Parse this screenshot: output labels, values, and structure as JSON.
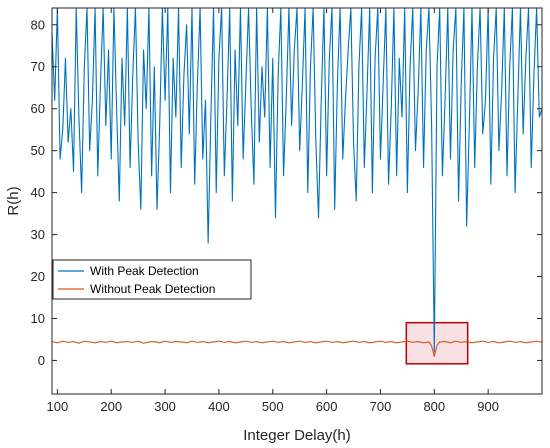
{
  "chart_data": {
    "type": "line",
    "title": "",
    "xlabel": "Integer Delay(h)",
    "ylabel": "R(h)",
    "xlim": [
      90,
      1000
    ],
    "ylim": [
      -8,
      84
    ],
    "xticks": [
      100,
      200,
      300,
      400,
      500,
      600,
      700,
      800,
      900
    ],
    "yticks": [
      0,
      10,
      20,
      30,
      40,
      50,
      60,
      70,
      80
    ],
    "grid": false,
    "legend_position": "middle-left",
    "series": [
      {
        "name": "With Peak Detection",
        "color": "#0072BD",
        "x": [
          90,
          95,
          100,
          105,
          110,
          115,
          120,
          125,
          130,
          135,
          140,
          145,
          150,
          155,
          160,
          165,
          170,
          175,
          180,
          185,
          190,
          195,
          200,
          205,
          210,
          215,
          220,
          225,
          230,
          235,
          240,
          245,
          250,
          255,
          260,
          265,
          270,
          275,
          280,
          285,
          290,
          295,
          300,
          305,
          310,
          315,
          320,
          325,
          330,
          335,
          340,
          345,
          350,
          355,
          360,
          365,
          370,
          375,
          380,
          385,
          390,
          395,
          400,
          405,
          410,
          415,
          420,
          425,
          430,
          435,
          440,
          445,
          450,
          455,
          460,
          465,
          470,
          475,
          480,
          485,
          490,
          495,
          500,
          505,
          510,
          515,
          520,
          525,
          530,
          535,
          540,
          545,
          550,
          555,
          560,
          565,
          570,
          575,
          580,
          585,
          590,
          595,
          600,
          605,
          610,
          615,
          620,
          625,
          630,
          635,
          640,
          645,
          650,
          655,
          660,
          665,
          670,
          675,
          680,
          685,
          690,
          695,
          700,
          705,
          710,
          715,
          720,
          725,
          730,
          735,
          740,
          745,
          750,
          755,
          760,
          765,
          770,
          775,
          780,
          785,
          790,
          795,
          800,
          805,
          810,
          815,
          820,
          825,
          830,
          835,
          840,
          845,
          850,
          855,
          860,
          865,
          870,
          875,
          880,
          885,
          890,
          895,
          900,
          905,
          910,
          915,
          920,
          925,
          930,
          935,
          940,
          945,
          950,
          955,
          960,
          965,
          970,
          975,
          980,
          985,
          990,
          995,
          1000
        ],
        "y": [
          78,
          62,
          84,
          48,
          55,
          72,
          52,
          60,
          45,
          84,
          58,
          40,
          70,
          84,
          50,
          62,
          84,
          44,
          66,
          84,
          56,
          74,
          48,
          84,
          60,
          38,
          72,
          56,
          84,
          46,
          68,
          84,
          52,
          36,
          74,
          60,
          84,
          44,
          70,
          36,
          56,
          84,
          62,
          84,
          40,
          72,
          58,
          84,
          46,
          68,
          80,
          54,
          84,
          42,
          66,
          84,
          48,
          62,
          28,
          58,
          84,
          40,
          72,
          84,
          44,
          62,
          84,
          38,
          74,
          56,
          84,
          48,
          66,
          84,
          60,
          42,
          84,
          52,
          70,
          58,
          84,
          46,
          72,
          34,
          68,
          84,
          44,
          62,
          84,
          56,
          74,
          84,
          50,
          66,
          84,
          40,
          70,
          84,
          52,
          34,
          62,
          84,
          44,
          72,
          84,
          36,
          66,
          84,
          48,
          62,
          74,
          84,
          52,
          38,
          70,
          84,
          46,
          64,
          84,
          40,
          72,
          84,
          48,
          66,
          84,
          42,
          60,
          84,
          44,
          72,
          58,
          84,
          40,
          70,
          84,
          50,
          64,
          84,
          46,
          74,
          84,
          56,
          2,
          70,
          84,
          44,
          62,
          84,
          48,
          74,
          84,
          38,
          66,
          84,
          32,
          56,
          84,
          46,
          70,
          84,
          54,
          62,
          84,
          42,
          72,
          84,
          50,
          64,
          84,
          44,
          70,
          84,
          40,
          62,
          84,
          54,
          72,
          84,
          46,
          68,
          84,
          58,
          60
        ]
      },
      {
        "name": "Without Peak Detection",
        "color": "#D95319",
        "x": [
          90,
          100,
          110,
          120,
          130,
          140,
          150,
          160,
          170,
          180,
          190,
          200,
          210,
          220,
          230,
          240,
          250,
          260,
          270,
          280,
          290,
          300,
          310,
          320,
          330,
          340,
          350,
          360,
          370,
          380,
          390,
          400,
          410,
          420,
          430,
          440,
          450,
          460,
          470,
          480,
          490,
          500,
          510,
          520,
          530,
          540,
          550,
          560,
          570,
          580,
          590,
          600,
          610,
          620,
          630,
          640,
          650,
          660,
          670,
          680,
          690,
          700,
          710,
          720,
          730,
          740,
          750,
          760,
          770,
          780,
          790,
          795,
          800,
          805,
          810,
          820,
          830,
          840,
          850,
          860,
          870,
          880,
          890,
          900,
          910,
          920,
          930,
          940,
          950,
          960,
          970,
          980,
          990,
          1000
        ],
        "y": [
          4.5,
          4.2,
          4.6,
          4.3,
          4.5,
          4.1,
          4.6,
          4.4,
          4.2,
          4.5,
          4.3,
          4.6,
          4.2,
          4.4,
          4.5,
          4.3,
          4.6,
          4.1,
          4.4,
          4.5,
          4.2,
          4.6,
          4.3,
          4.5,
          4.4,
          4.2,
          4.6,
          4.3,
          4.5,
          4.2,
          4.4,
          4.6,
          4.3,
          4.5,
          4.2,
          4.4,
          4.6,
          4.3,
          4.5,
          4.2,
          4.4,
          4.6,
          4.3,
          4.5,
          4.2,
          4.4,
          4.6,
          4.3,
          4.5,
          4.2,
          4.4,
          4.6,
          4.3,
          4.5,
          4.2,
          4.4,
          4.6,
          4.3,
          4.5,
          4.2,
          4.4,
          4.6,
          4.3,
          4.5,
          4.2,
          4.4,
          4.6,
          4.3,
          4.5,
          4.2,
          4.4,
          3.5,
          1.0,
          3.6,
          4.4,
          4.5,
          4.2,
          4.6,
          4.3,
          4.5,
          4.2,
          4.4,
          4.6,
          4.3,
          4.5,
          4.2,
          4.4,
          4.6,
          4.3,
          4.5,
          4.2,
          4.4,
          4.6,
          4.3
        ]
      }
    ],
    "annotations": [
      {
        "type": "rectangle",
        "color": "#C00000",
        "fill": "#F4C7CF",
        "x_range": [
          748,
          862
        ],
        "y_range": [
          -0.8,
          9
        ]
      }
    ]
  }
}
